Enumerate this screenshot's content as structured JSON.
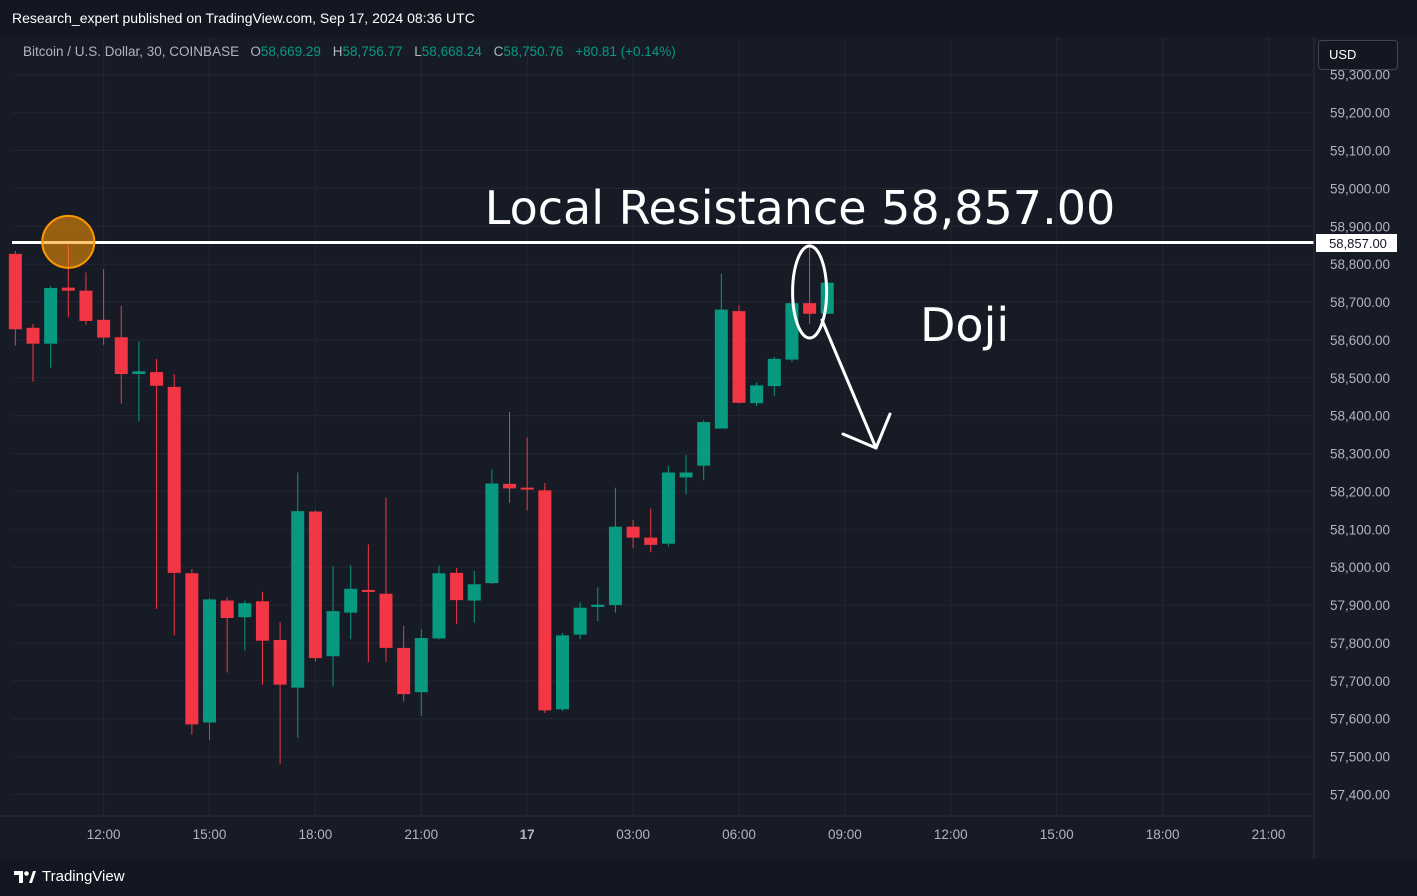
{
  "header": {
    "publish_line": "Research_expert published on TradingView.com, Sep 17, 2024 08:36 UTC"
  },
  "legend": {
    "symbol": "Bitcoin / U.S. Dollar, 30, COINBASE",
    "open_label": "O",
    "open": "58,669.29",
    "high_label": "H",
    "high": "58,756.77",
    "low_label": "L",
    "low": "58,668.24",
    "close_label": "C",
    "close": "58,750.76",
    "change": "+80.81 (+0.14%)"
  },
  "currency_button": "USD",
  "footer": {
    "brand": "TradingView"
  },
  "colors": {
    "up": "#089981",
    "down": "#f23645",
    "background": "#171b26",
    "grid": "#232632"
  },
  "chart_data": {
    "type": "candlestick",
    "interval": "30",
    "ylim": [
      57350,
      59300
    ],
    "y_ticks": [
      57400,
      57500,
      57600,
      57700,
      57800,
      57900,
      58000,
      58100,
      58200,
      58300,
      58400,
      58500,
      58600,
      58700,
      58800,
      58900,
      59000,
      59100,
      59200,
      59300
    ],
    "y_tick_labels": [
      "57,400.00",
      "57,500.00",
      "57,600.00",
      "57,700.00",
      "57,800.00",
      "57,900.00",
      "58,000.00",
      "58,100.00",
      "58,200.00",
      "58,300.00",
      "58,400.00",
      "58,500.00",
      "58,600.00",
      "58,700.00",
      "58,800.00",
      "58,900.00",
      "59,000.00",
      "59,100.00",
      "59,200.00",
      "59,300.00"
    ],
    "x_ticks": [
      "12:00",
      "15:00",
      "18:00",
      "21:00",
      "17",
      "03:00",
      "06:00",
      "09:00",
      "12:00",
      "15:00",
      "18:00",
      "21:00"
    ],
    "x_tick_hours": [
      12,
      15,
      18,
      21,
      24,
      27,
      30,
      33,
      36,
      39,
      42,
      45
    ],
    "candle_hours_start": 9.5,
    "candle_step_hours": 0.5,
    "candles": [
      {
        "o": 58827,
        "h": 58835,
        "l": 58585,
        "c": 58628
      },
      {
        "o": 58632,
        "h": 58642,
        "l": 58490,
        "c": 58590
      },
      {
        "o": 58590,
        "h": 58742,
        "l": 58527,
        "c": 58737
      },
      {
        "o": 58738,
        "h": 58851,
        "l": 58660,
        "c": 58730
      },
      {
        "o": 58730,
        "h": 58778,
        "l": 58640,
        "c": 58650
      },
      {
        "o": 58653,
        "h": 58787,
        "l": 58587,
        "c": 58606
      },
      {
        "o": 58607,
        "h": 58690,
        "l": 58432,
        "c": 58510
      },
      {
        "o": 58510,
        "h": 58596,
        "l": 58385,
        "c": 58517
      },
      {
        "o": 58515,
        "h": 58550,
        "l": 57890,
        "c": 58479
      },
      {
        "o": 58476,
        "h": 58510,
        "l": 57820,
        "c": 57985
      },
      {
        "o": 57984,
        "h": 57995,
        "l": 57558,
        "c": 57585
      },
      {
        "o": 57590,
        "h": 57918,
        "l": 57545,
        "c": 57915
      },
      {
        "o": 57912,
        "h": 57920,
        "l": 57722,
        "c": 57866
      },
      {
        "o": 57868,
        "h": 57912,
        "l": 57780,
        "c": 57905
      },
      {
        "o": 57910,
        "h": 57935,
        "l": 57690,
        "c": 57806
      },
      {
        "o": 57808,
        "h": 57855,
        "l": 57480,
        "c": 57690
      },
      {
        "o": 57682,
        "h": 58250,
        "l": 57550,
        "c": 58148
      },
      {
        "o": 58147,
        "h": 58150,
        "l": 57750,
        "c": 57760
      },
      {
        "o": 57765,
        "h": 58003,
        "l": 57685,
        "c": 57884
      },
      {
        "o": 57880,
        "h": 58005,
        "l": 57810,
        "c": 57943
      },
      {
        "o": 57940,
        "h": 58060,
        "l": 57750,
        "c": 57935
      },
      {
        "o": 57930,
        "h": 58183,
        "l": 57750,
        "c": 57787
      },
      {
        "o": 57787,
        "h": 57845,
        "l": 57645,
        "c": 57665
      },
      {
        "o": 57670,
        "h": 57837,
        "l": 57608,
        "c": 57813
      },
      {
        "o": 57812,
        "h": 58004,
        "l": 57810,
        "c": 57984
      },
      {
        "o": 57985,
        "h": 57998,
        "l": 57850,
        "c": 57913
      },
      {
        "o": 57912,
        "h": 57990,
        "l": 57854,
        "c": 57955
      },
      {
        "o": 57958,
        "h": 58258,
        "l": 57956,
        "c": 58221
      },
      {
        "o": 58220,
        "h": 58410,
        "l": 58170,
        "c": 58208
      },
      {
        "o": 58210,
        "h": 58342,
        "l": 58150,
        "c": 58205
      },
      {
        "o": 58203,
        "h": 58222,
        "l": 57615,
        "c": 57622
      },
      {
        "o": 57625,
        "h": 57826,
        "l": 57620,
        "c": 57820
      },
      {
        "o": 57822,
        "h": 57907,
        "l": 57810,
        "c": 57893
      },
      {
        "o": 57895,
        "h": 57947,
        "l": 57858,
        "c": 57901
      },
      {
        "o": 57900,
        "h": 58210,
        "l": 57880,
        "c": 58107
      },
      {
        "o": 58107,
        "h": 58125,
        "l": 58050,
        "c": 58078
      },
      {
        "o": 58078,
        "h": 58155,
        "l": 58040,
        "c": 58059
      },
      {
        "o": 58062,
        "h": 58267,
        "l": 58055,
        "c": 58250
      },
      {
        "o": 58237,
        "h": 58296,
        "l": 58192,
        "c": 58250
      },
      {
        "o": 58268,
        "h": 58388,
        "l": 58230,
        "c": 58383
      },
      {
        "o": 58366,
        "h": 58775,
        "l": 58370,
        "c": 58680
      },
      {
        "o": 58676,
        "h": 58692,
        "l": 58432,
        "c": 58434
      },
      {
        "o": 58433,
        "h": 58488,
        "l": 58425,
        "c": 58480
      },
      {
        "o": 58478,
        "h": 58555,
        "l": 58453,
        "c": 58550
      },
      {
        "o": 58548,
        "h": 58715,
        "l": 58542,
        "c": 58697
      },
      {
        "o": 58697,
        "h": 58857,
        "l": 58643,
        "c": 58669
      },
      {
        "o": 58669,
        "h": 58757,
        "l": 58668,
        "c": 58751
      }
    ],
    "resistance": {
      "value": 58857,
      "label": "58,857.00"
    },
    "annotations": {
      "resistance_text": "Local Resistance 58,857.00",
      "doji_text": "Doji"
    }
  }
}
